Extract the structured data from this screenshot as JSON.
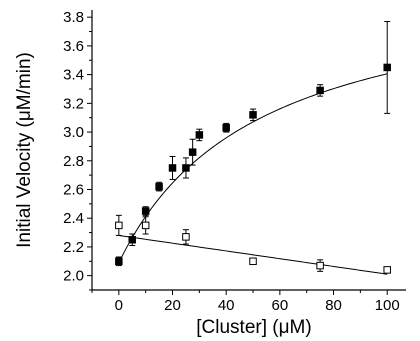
{
  "chart_data": {
    "type": "scatter",
    "xlabel": "[Cluster] (μM)",
    "ylabel": "Initial Velocity (μM/min)",
    "xlim": [
      -10,
      107
    ],
    "ylim": [
      1.9,
      3.85
    ],
    "xticks": [
      0,
      20,
      40,
      60,
      80,
      100
    ],
    "yticks": [
      2.0,
      2.2,
      2.4,
      2.6,
      2.8,
      3.0,
      3.2,
      3.4,
      3.6,
      3.8
    ],
    "grid": false,
    "legend": "none",
    "series": [
      {
        "marker": "filled-square",
        "color": "#000000",
        "points": [
          {
            "x": 0,
            "y": 2.1,
            "err": 0.03
          },
          {
            "x": 5,
            "y": 2.25,
            "err": 0.04
          },
          {
            "x": 10,
            "y": 2.45,
            "err": 0.03
          },
          {
            "x": 15,
            "y": 2.62,
            "err": 0.03
          },
          {
            "x": 20,
            "y": 2.75,
            "err": 0.08
          },
          {
            "x": 25,
            "y": 2.75,
            "err": 0.07
          },
          {
            "x": 27.5,
            "y": 2.86,
            "err": 0.09
          },
          {
            "x": 30,
            "y": 2.98,
            "err": 0.04
          },
          {
            "x": 40,
            "y": 3.03,
            "err": 0.03
          },
          {
            "x": 50,
            "y": 3.12,
            "err": 0.04
          },
          {
            "x": 75,
            "y": 3.29,
            "err": 0.04
          },
          {
            "x": 100,
            "y": 3.45,
            "err": 0.32
          }
        ],
        "fit": {
          "kind": "hyperbolic",
          "y0": 2.09,
          "vmax": 2.0,
          "k": 52
        }
      },
      {
        "marker": "open-square",
        "color": "#000000",
        "points": [
          {
            "x": 0,
            "y": 2.35,
            "err": 0.07
          },
          {
            "x": 10,
            "y": 2.35,
            "err": 0.06
          },
          {
            "x": 25,
            "y": 2.27,
            "err": 0.05
          },
          {
            "x": 50,
            "y": 2.1,
            "err": 0.02
          },
          {
            "x": 75,
            "y": 2.07,
            "err": 0.04
          },
          {
            "x": 100,
            "y": 2.04,
            "err": 0.02
          }
        ],
        "fit": {
          "kind": "linear",
          "intercept": 2.28,
          "slope": -0.0027
        }
      }
    ]
  }
}
